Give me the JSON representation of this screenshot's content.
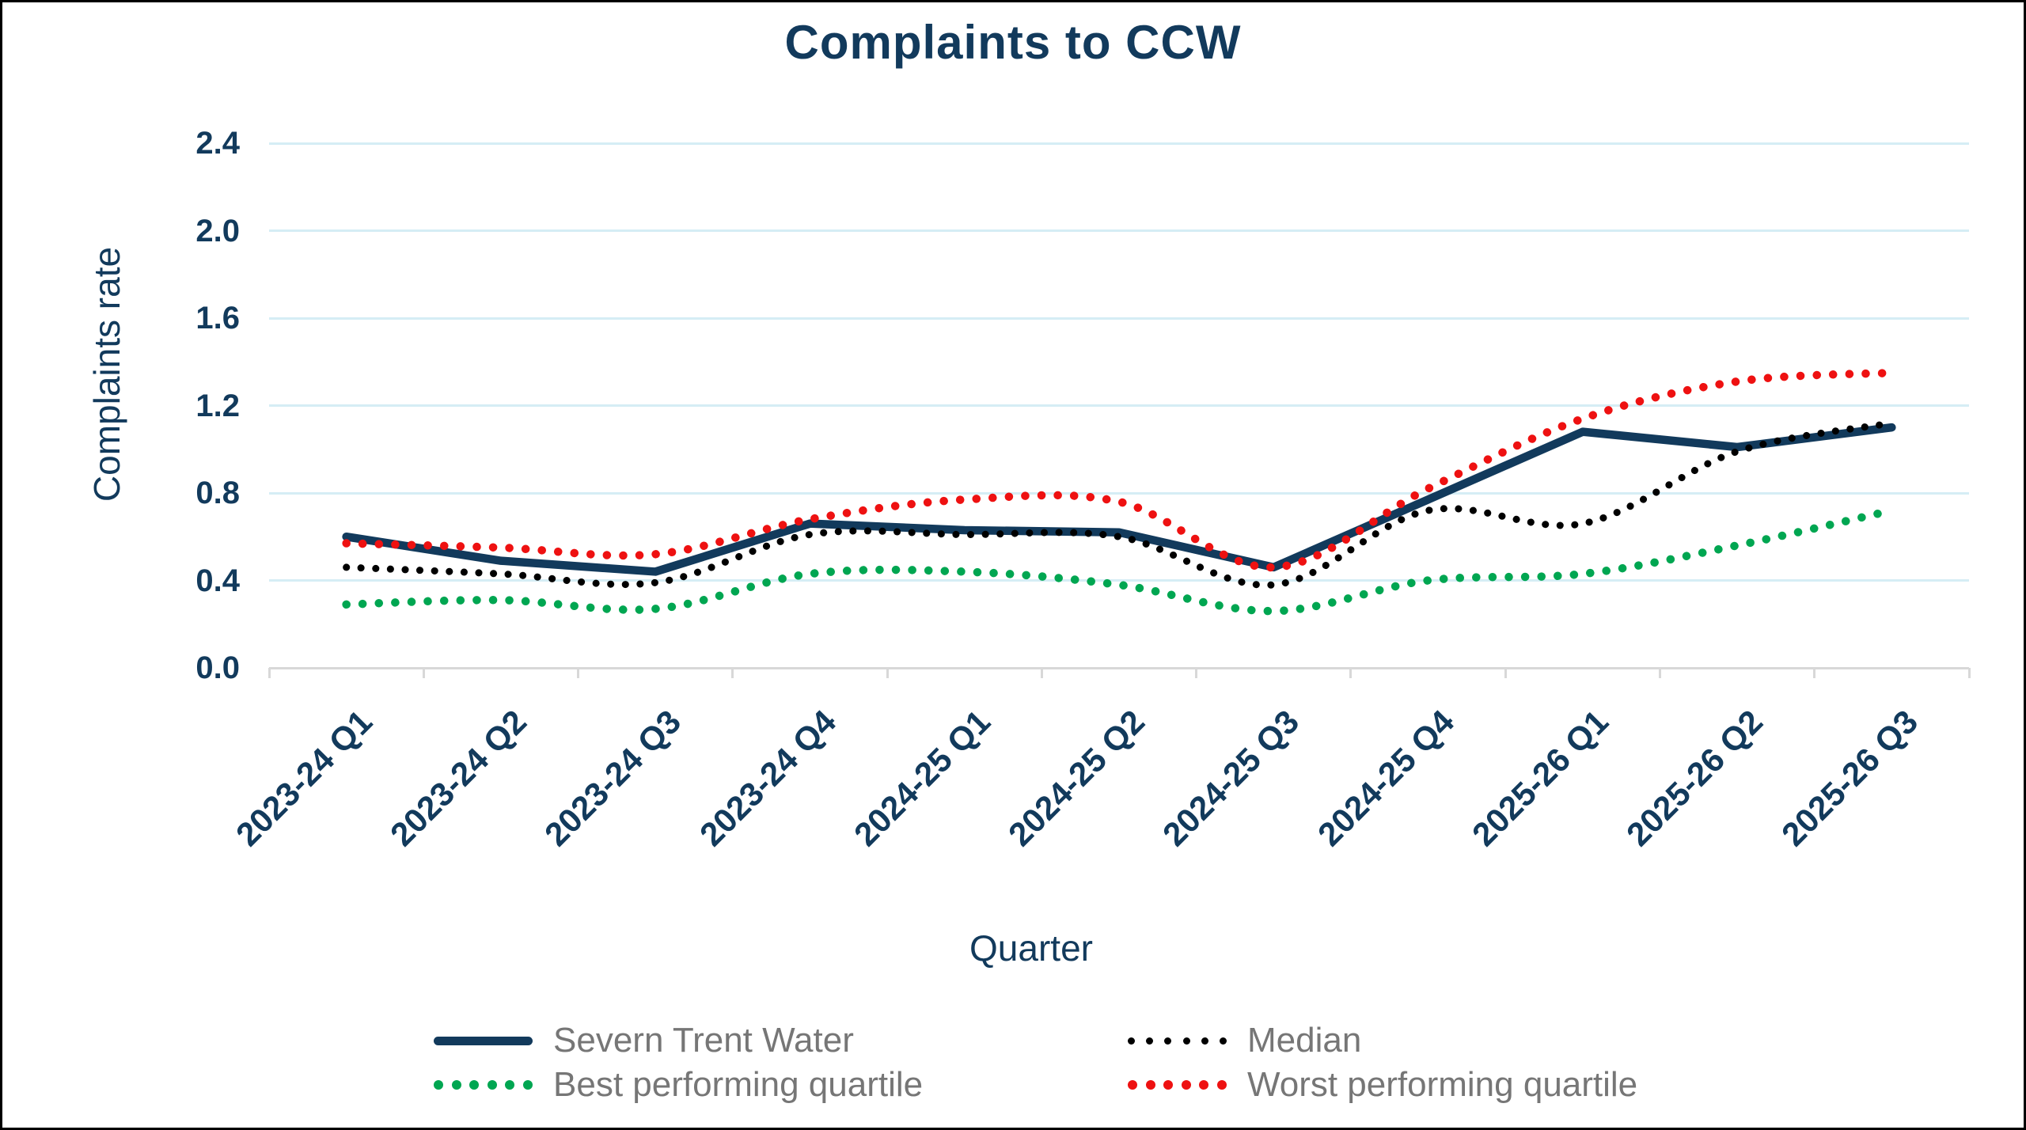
{
  "title": "Complaints to CCW",
  "y_axis": {
    "title": "Complaints rate",
    "ticks": [
      "0.0",
      "0.4",
      "0.8",
      "1.2",
      "1.6",
      "2.0",
      "2.4"
    ]
  },
  "x_axis": {
    "title": "Quarter"
  },
  "legend": {
    "items": [
      {
        "label": "Severn Trent Water",
        "style": "solid",
        "color": "#123a5c"
      },
      {
        "label": "Median",
        "style": "dotted",
        "color": "#000000"
      },
      {
        "label": "Best performing quartile",
        "style": "dotted",
        "color": "#00a651"
      },
      {
        "label": "Worst performing quartile",
        "style": "dotted",
        "color": "#ee1111"
      }
    ]
  },
  "colors": {
    "navy": "#123a5c",
    "red": "#ee1111",
    "green": "#00a651",
    "black": "#000000",
    "gridline": "#d5edf5",
    "axis": "#d8d8d8",
    "legend_text": "#767676",
    "background": "#ffffff"
  },
  "chart_data": {
    "type": "line",
    "title": "Complaints to CCW",
    "xlabel": "Quarter",
    "ylabel": "Complaints rate",
    "ylim": [
      0,
      2.4
    ],
    "y_tick_step": 0.4,
    "grid": true,
    "legend_position": "bottom",
    "categories": [
      "2023-24 Q1",
      "2023-24 Q2",
      "2023-24 Q3",
      "2023-24 Q4",
      "2024-25 Q1",
      "2024-25 Q2",
      "2024-25 Q3",
      "2024-25 Q4",
      "2025-26 Q1",
      "2025-26 Q2",
      "2025-26 Q3"
    ],
    "series": [
      {
        "name": "Severn Trent Water",
        "style": "solid",
        "color": "#123a5c",
        "values": [
          0.6,
          0.49,
          0.44,
          0.66,
          0.63,
          0.62,
          0.46,
          0.77,
          1.08,
          1.01,
          1.1
        ]
      },
      {
        "name": "Median",
        "style": "dotted",
        "color": "#000000",
        "values": [
          0.46,
          0.43,
          0.39,
          0.61,
          0.61,
          0.6,
          0.38,
          0.72,
          0.66,
          0.99,
          1.12
        ]
      },
      {
        "name": "Best performing quartile",
        "style": "dotted",
        "color": "#00a651",
        "values": [
          0.29,
          0.31,
          0.27,
          0.43,
          0.44,
          0.38,
          0.26,
          0.4,
          0.43,
          0.56,
          0.72
        ]
      },
      {
        "name": "Worst performing quartile",
        "style": "dotted",
        "color": "#ee1111",
        "values": [
          0.57,
          0.55,
          0.52,
          0.68,
          0.77,
          0.76,
          0.46,
          0.82,
          1.14,
          1.31,
          1.35
        ]
      }
    ]
  }
}
